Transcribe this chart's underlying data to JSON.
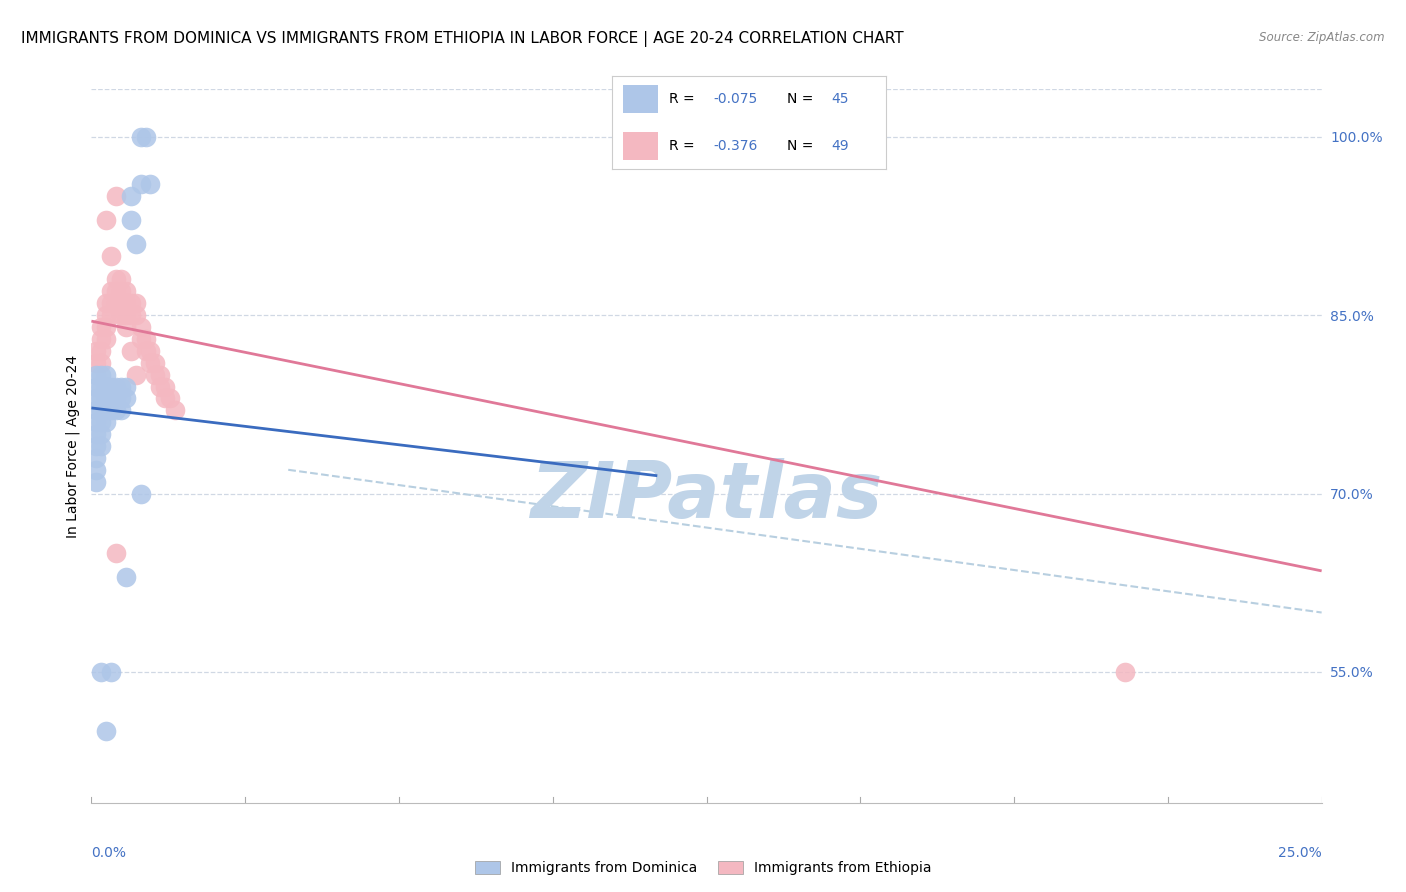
{
  "title": "IMMIGRANTS FROM DOMINICA VS IMMIGRANTS FROM ETHIOPIA IN LABOR FORCE | AGE 20-24 CORRELATION CHART",
  "source": "Source: ZipAtlas.com",
  "ylabel": "In Labor Force | Age 20-24",
  "xlim": [
    0.0,
    0.25
  ],
  "ylim": [
    0.44,
    1.04
  ],
  "ytick_vals": [
    0.55,
    0.7,
    0.85,
    1.0
  ],
  "ytick_labels": [
    "55.0%",
    "70.0%",
    "85.0%",
    "100.0%"
  ],
  "xtick_left_label": "0.0%",
  "xtick_right_label": "25.0%",
  "dominica_color": "#aec6e8",
  "ethiopia_color": "#f4b8c1",
  "line_dominica_color": "#3a6bbf",
  "line_ethiopia_color": "#e07898",
  "line_combined_color": "#b8cfe0",
  "text_blue": "#4472c4",
  "grid_color": "#d0d8e4",
  "watermark_text": "ZIPatlas",
  "watermark_color": "#c0d4e8",
  "dominica_R": -0.075,
  "dominica_N": 45,
  "ethiopia_R": -0.376,
  "ethiopia_N": 49,
  "dominica_x": [
    0.001,
    0.001,
    0.001,
    0.001,
    0.001,
    0.001,
    0.001,
    0.001,
    0.001,
    0.001,
    0.002,
    0.002,
    0.002,
    0.002,
    0.002,
    0.002,
    0.002,
    0.003,
    0.003,
    0.003,
    0.003,
    0.003,
    0.004,
    0.004,
    0.004,
    0.005,
    0.005,
    0.005,
    0.006,
    0.006,
    0.006,
    0.007,
    0.007,
    0.008,
    0.008,
    0.009,
    0.01,
    0.01,
    0.011,
    0.012,
    0.002,
    0.004,
    0.007,
    0.01,
    0.003
  ],
  "dominica_y": [
    0.8,
    0.79,
    0.78,
    0.77,
    0.76,
    0.75,
    0.74,
    0.73,
    0.72,
    0.71,
    0.8,
    0.79,
    0.78,
    0.77,
    0.76,
    0.75,
    0.74,
    0.8,
    0.79,
    0.78,
    0.77,
    0.76,
    0.79,
    0.78,
    0.77,
    0.79,
    0.78,
    0.77,
    0.79,
    0.78,
    0.77,
    0.79,
    0.78,
    0.93,
    0.95,
    0.91,
    0.96,
    1.0,
    1.0,
    0.96,
    0.55,
    0.55,
    0.63,
    0.7,
    0.5
  ],
  "ethiopia_x": [
    0.001,
    0.001,
    0.002,
    0.002,
    0.002,
    0.002,
    0.003,
    0.003,
    0.003,
    0.003,
    0.004,
    0.004,
    0.004,
    0.005,
    0.005,
    0.005,
    0.006,
    0.006,
    0.006,
    0.007,
    0.007,
    0.007,
    0.008,
    0.008,
    0.009,
    0.009,
    0.01,
    0.01,
    0.011,
    0.011,
    0.012,
    0.012,
    0.013,
    0.013,
    0.014,
    0.014,
    0.015,
    0.015,
    0.016,
    0.017,
    0.003,
    0.004,
    0.005,
    0.006,
    0.007,
    0.008,
    0.009,
    0.21,
    0.005
  ],
  "ethiopia_y": [
    0.82,
    0.81,
    0.84,
    0.83,
    0.82,
    0.81,
    0.86,
    0.85,
    0.84,
    0.83,
    0.87,
    0.86,
    0.85,
    0.88,
    0.87,
    0.86,
    0.87,
    0.86,
    0.85,
    0.87,
    0.86,
    0.85,
    0.86,
    0.85,
    0.86,
    0.85,
    0.84,
    0.83,
    0.83,
    0.82,
    0.82,
    0.81,
    0.81,
    0.8,
    0.8,
    0.79,
    0.79,
    0.78,
    0.78,
    0.77,
    0.93,
    0.9,
    0.95,
    0.88,
    0.84,
    0.82,
    0.8,
    0.55,
    0.65
  ],
  "dominica_line_x0": 0.0,
  "dominica_line_x1": 0.115,
  "dominica_line_y0": 0.772,
  "dominica_line_y1": 0.715,
  "ethiopia_line_x0": 0.0,
  "ethiopia_line_x1": 0.25,
  "ethiopia_line_y0": 0.845,
  "ethiopia_line_y1": 0.635,
  "combined_line_x0": 0.04,
  "combined_line_x1": 0.25,
  "combined_line_y0": 0.72,
  "combined_line_y1": 0.6
}
